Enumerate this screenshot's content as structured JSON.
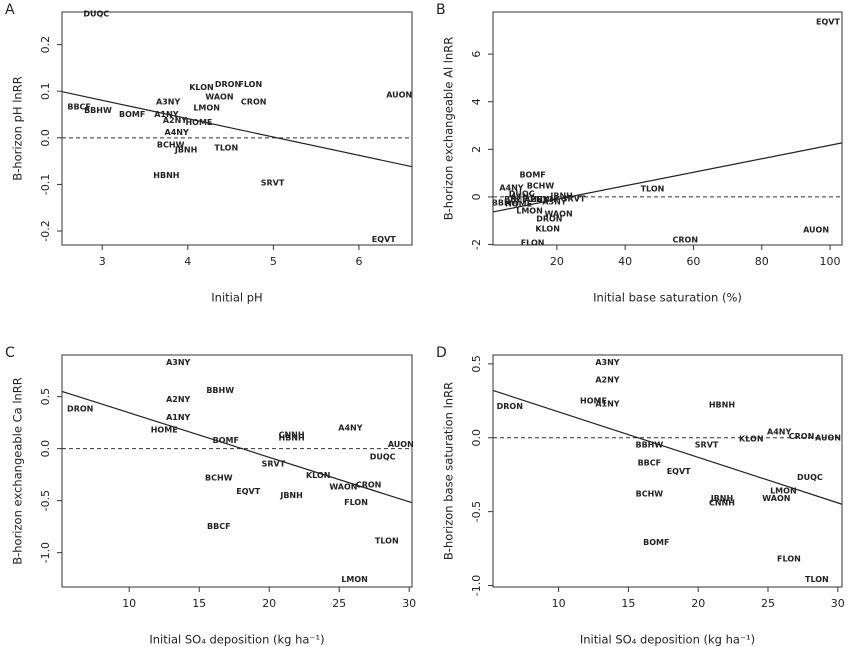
{
  "chart_data": [
    {
      "type": "scatter",
      "panel": "A",
      "xlabel": "Initial pH",
      "ylabel": "B-horizon pH lnRR",
      "xlim": [
        2.53,
        6.62
      ],
      "ylim": [
        -0.23,
        0.27
      ],
      "xticks": [
        3,
        4,
        5,
        6
      ],
      "yticks": [
        -0.2,
        -0.1,
        {
          "value": 0,
          "label": "0.0"
        },
        0.1,
        0.2
      ],
      "labels": [
        "DUQC",
        "BBCF",
        "BBHW",
        "BOMF",
        "A3NY",
        "A1NY",
        "A2NY",
        "HOME",
        "A4NY",
        "KLON",
        "DRON",
        "FLON",
        "WAON",
        "LMON",
        "CRON",
        "AUON",
        "BCHW",
        "JBNH",
        "TLON",
        "HBNH",
        "SRVT",
        "EQVT"
      ],
      "x": [
        2.93,
        2.73,
        2.95,
        3.35,
        3.77,
        3.75,
        3.85,
        4.13,
        3.87,
        4.16,
        4.47,
        4.73,
        4.37,
        4.22,
        4.77,
        6.47,
        3.8,
        3.98,
        4.45,
        3.75,
        4.99,
        6.29
      ],
      "values": [
        0.266,
        0.066,
        0.059,
        0.05,
        0.077,
        0.05,
        0.037,
        0.033,
        0.011,
        0.108,
        0.114,
        0.114,
        0.088,
        0.064,
        0.077,
        0.092,
        -0.015,
        -0.026,
        -0.022,
        -0.081,
        -0.097,
        -0.218
      ],
      "fit": {
        "x": [
          2.53,
          6.62
        ],
        "y": [
          0.099,
          -0.062
        ]
      },
      "ref_line": 0
    },
    {
      "type": "scatter",
      "panel": "B",
      "xlabel": "Initial base saturation (%)",
      "ylabel": "B-horizon exchangeable Al lnRR",
      "xlim": [
        1.3,
        103.5
      ],
      "ylim": [
        -2.02,
        7.77
      ],
      "xticks": [
        20,
        40,
        60,
        80,
        100
      ],
      "yticks": [
        -2,
        0,
        2,
        4,
        6
      ],
      "labels": [
        "EQVT",
        "AUON",
        "CRON",
        "TLON",
        "BOMF",
        "BCHW",
        "A4NY",
        "DUQC",
        "JBNH",
        "SRVT",
        "A3NY",
        "HOME",
        "BBHW",
        "LMON",
        "WAON",
        "DRON",
        "KLON",
        "FLON",
        "A1NY",
        "A2NY",
        "BBCF",
        "HBNH"
      ],
      "x": [
        99.4,
        95.9,
        57.6,
        48,
        12.9,
        15.2,
        6.7,
        9.7,
        21.4,
        24.9,
        19.3,
        8.8,
        5,
        12,
        20.5,
        17.8,
        17.3,
        12.9,
        10,
        14,
        8,
        16
      ],
      "values": [
        7.35,
        -1.39,
        -1.81,
        0.34,
        0.92,
        0.46,
        0.38,
        0.13,
        0.04,
        -0.08,
        -0.21,
        -0.29,
        -0.25,
        -0.59,
        -0.71,
        -0.92,
        -1.34,
        -1.93,
        0,
        -0.1,
        -0.1,
        -0.1
      ],
      "fit": {
        "x": [
          1.3,
          103.5
        ],
        "y": [
          -0.63,
          2.27
        ]
      },
      "ref_line": 0
    },
    {
      "type": "scatter",
      "panel": "C",
      "xlabel": "Initial SO₄ deposition (kg ha⁻¹)",
      "ylabel": "B-horizon exchangeable Ca lnRR",
      "xlim": [
        5.2,
        30.2
      ],
      "ylim": [
        -1.33,
        0.9
      ],
      "xticks": [
        10,
        15,
        20,
        25,
        30
      ],
      "yticks": [
        {
          "value": -1,
          "label": "-1.0"
        },
        -0.5,
        {
          "value": 0,
          "label": "0.0"
        },
        0.5
      ],
      "labels": [
        "A3NY",
        "BBHW",
        "A2NY",
        "DRON",
        "A1NY",
        "HOME",
        "BOMF",
        "CNNH",
        "HBNH",
        "A4NY",
        "AUON",
        "DUQC",
        "SRVT",
        "KLON",
        "BCHW",
        "WAON",
        "CRON",
        "EQVT",
        "JBNH",
        "FLON",
        "BBCF",
        "TLON",
        "LMON"
      ],
      "x": [
        13.5,
        16.5,
        13.5,
        6.5,
        13.5,
        12.5,
        16.9,
        21.6,
        21.6,
        25.8,
        29.4,
        28.1,
        20.3,
        23.5,
        16.4,
        25.3,
        27.1,
        18.5,
        21.6,
        26.2,
        16.4,
        28.4,
        26.1
      ],
      "values": [
        0.83,
        0.56,
        0.47,
        0.38,
        0.3,
        0.18,
        0.08,
        0.13,
        0.1,
        0.2,
        0.04,
        -0.08,
        -0.15,
        -0.26,
        -0.28,
        -0.37,
        -0.35,
        -0.41,
        -0.45,
        -0.52,
        -0.75,
        -0.89,
        -1.26
      ],
      "fit": {
        "x": [
          5.2,
          30.2
        ],
        "y": [
          0.55,
          -0.52
        ]
      },
      "ref_line": 0
    },
    {
      "type": "scatter",
      "panel": "D",
      "xlabel": "Initial SO₄ deposition (kg ha⁻¹)",
      "ylabel": "B-horizon base saturation lnRR",
      "xlim": [
        5.3,
        30.3
      ],
      "ylim": [
        -1.01,
        0.56
      ],
      "xticks": [
        10,
        15,
        20,
        25,
        30
      ],
      "yticks": [
        {
          "value": -1,
          "label": "-1.0"
        },
        -0.5,
        {
          "value": 0,
          "label": "0.0"
        },
        0.5
      ],
      "labels": [
        "A3NY",
        "A2NY",
        "HOME",
        "A1NY",
        "DRON",
        "HBNH",
        "BBHW",
        "SRVT",
        "KLON",
        "A4NY",
        "CRON",
        "AUON",
        "BBCF",
        "EQVT",
        "DUQC",
        "LMON",
        "BCHW",
        "JBNH",
        "WAON",
        "CNNH",
        "BOMF",
        "FLON",
        "TLON"
      ],
      "x": [
        13.5,
        13.5,
        12.5,
        13.5,
        6.5,
        21.7,
        16.5,
        20.6,
        23.8,
        25.8,
        27.4,
        29.3,
        16.5,
        18.6,
        28,
        26.1,
        16.5,
        21.7,
        25.6,
        21.7,
        17,
        26.5,
        28.5
      ],
      "values": [
        0.51,
        0.39,
        0.25,
        0.23,
        0.21,
        0.22,
        -0.05,
        -0.05,
        -0.01,
        0.04,
        0.01,
        0,
        -0.17,
        -0.23,
        -0.27,
        -0.36,
        -0.38,
        -0.41,
        -0.41,
        -0.44,
        -0.71,
        -0.82,
        -0.96
      ],
      "fit": {
        "x": [
          5.3,
          30.3
        ],
        "y": [
          0.32,
          -0.45
        ]
      },
      "ref_line": 0
    }
  ]
}
